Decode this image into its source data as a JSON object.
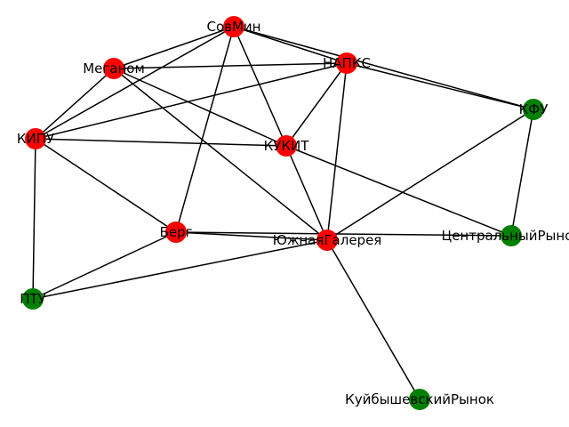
{
  "graph": {
    "colors": {
      "red": "#ff0000",
      "green": "#008000",
      "edge": "#000000"
    },
    "nodes": [
      {
        "id": "СовМин",
        "label": "СовМин",
        "color": "red"
      },
      {
        "id": "Меганом",
        "label": "Меганом",
        "color": "red"
      },
      {
        "id": "НАПКС",
        "label": "НАПКС",
        "color": "red"
      },
      {
        "id": "КФУ",
        "label": "КФУ",
        "color": "green"
      },
      {
        "id": "КИПУ",
        "label": "КИПУ",
        "color": "red"
      },
      {
        "id": "КУКИТ",
        "label": "КУКИТ",
        "color": "red"
      },
      {
        "id": "Берг",
        "label": "Берг",
        "color": "red"
      },
      {
        "id": "ЮжнаяГалерея",
        "label": "ЮжнаяГалерея",
        "color": "red"
      },
      {
        "id": "ЦентральныйРынок",
        "label": "ЦентральныйРынок",
        "color": "green"
      },
      {
        "id": "ПТУ",
        "label": "ПТУ",
        "color": "green"
      },
      {
        "id": "КуйбышевскийРынок",
        "label": "КуйбышевскийРынок",
        "color": "green"
      }
    ],
    "edges": [
      [
        "СовМин",
        "НАПКС"
      ],
      [
        "СовМин",
        "Меганом"
      ],
      [
        "СовМин",
        "КИПУ"
      ],
      [
        "СовМин",
        "КУКИТ"
      ],
      [
        "СовМин",
        "Берг"
      ],
      [
        "СовМин",
        "КФУ"
      ],
      [
        "Меганом",
        "НАПКС"
      ],
      [
        "Меганом",
        "КИПУ"
      ],
      [
        "Меганом",
        "КУКИТ"
      ],
      [
        "Меганом",
        "ЮжнаяГалерея"
      ],
      [
        "НАПКС",
        "КФУ"
      ],
      [
        "НАПКС",
        "КИПУ"
      ],
      [
        "НАПКС",
        "КУКИТ"
      ],
      [
        "НАПКС",
        "ЮжнаяГалерея"
      ],
      [
        "КФУ",
        "ЮжнаяГалерея"
      ],
      [
        "КФУ",
        "ЦентральныйРынок"
      ],
      [
        "КИПУ",
        "КУКИТ"
      ],
      [
        "КИПУ",
        "Берг"
      ],
      [
        "КИПУ",
        "ПТУ"
      ],
      [
        "КУКИТ",
        "ЮжнаяГалерея"
      ],
      [
        "КУКИТ",
        "ЦентральныйРынок"
      ],
      [
        "Берг",
        "ЮжнаяГалерея"
      ],
      [
        "Берг",
        "ЦентральныйРынок"
      ],
      [
        "Берг",
        "ПТУ"
      ],
      [
        "ЮжнаяГалерея",
        "ПТУ"
      ],
      [
        "ЮжнаяГалерея",
        "КуйбышевскийРынок"
      ]
    ]
  }
}
